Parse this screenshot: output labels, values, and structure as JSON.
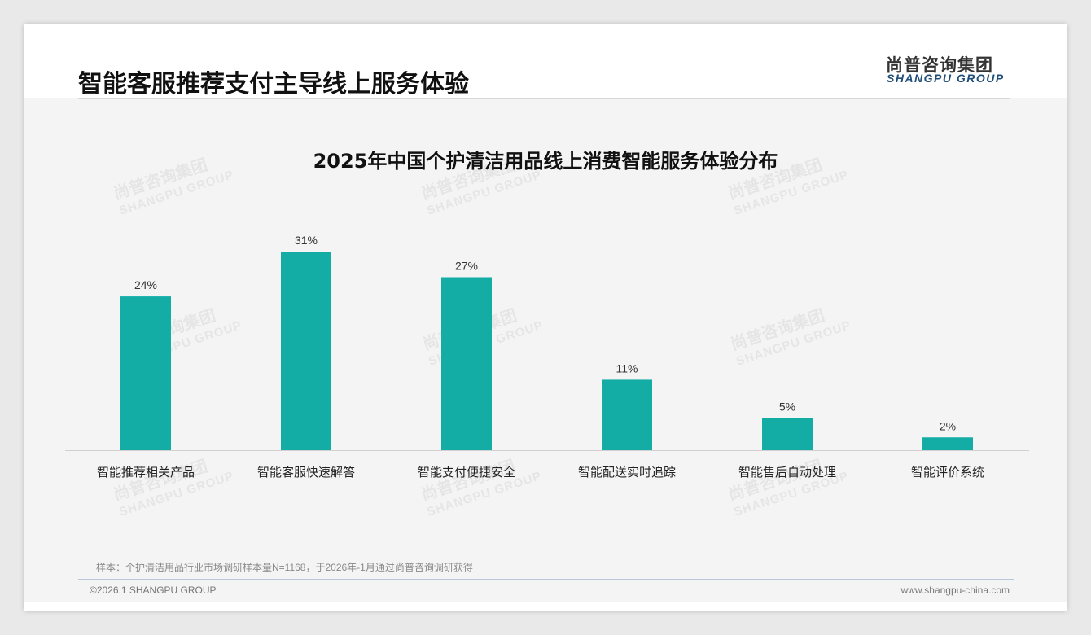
{
  "header": {
    "title": "智能客服推荐支付主导线上服务体验",
    "logo_cn": "尚普咨询集团",
    "logo_en": "SHANGPU GROUP"
  },
  "watermark": {
    "cn": "尚普咨询集团",
    "en": "SHANGPU GROUP"
  },
  "chart_data": {
    "type": "bar",
    "title": "2025年中国个护清洁用品线上消费智能服务体验分布",
    "categories": [
      "智能推荐相关产品",
      "智能客服快速解答",
      "智能支付便捷安全",
      "智能配送实时追踪",
      "智能售后自动处理",
      "智能评价系统"
    ],
    "values": [
      24,
      31,
      27,
      11,
      5,
      2
    ],
    "labels": [
      "24%",
      "31%",
      "27%",
      "11%",
      "5%",
      "2%"
    ],
    "unit": "%",
    "ylim": [
      0,
      31
    ],
    "grid": false,
    "color": "#13ada6"
  },
  "footer": {
    "note": "样本：个护清洁用品行业市场调研样本量N=1168，于2026年-1月通过尚普咨询调研获得",
    "copyright": "©2026.1 SHANGPU GROUP",
    "url": "www.shangpu-china.com"
  }
}
